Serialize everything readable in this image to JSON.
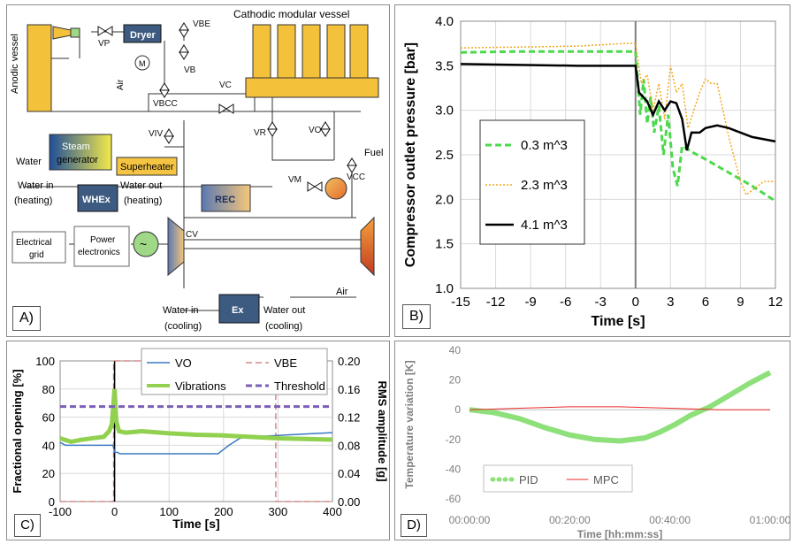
{
  "panels": {
    "a": {
      "tag": "A)"
    },
    "b": {
      "tag": "B)"
    },
    "c": {
      "tag": "C)"
    },
    "d": {
      "tag": "D)"
    }
  },
  "diagram": {
    "labels": {
      "anodic": "Anodic vessel",
      "cathodic": "Cathodic modular vessel",
      "dryer": "Dryer",
      "air_side": "Air",
      "steam1": "Steam",
      "steam2": "generator",
      "superheater": "Superheater",
      "water": "Water",
      "water_in_heating": "Water in",
      "heating_left": "(heating)",
      "whex": "WHEx",
      "water_out_heating": "Water out",
      "heating_right": "(heating)",
      "rec": "REC",
      "fuel": "Fuel",
      "grid1": "Electrical",
      "grid2": "grid",
      "pe1": "Power",
      "pe2": "electronics",
      "air_right": "Air",
      "ex": "Ex",
      "water_in_cooling": "Water in",
      "cooling_left": "(cooling)",
      "water_out_cooling": "Water out",
      "cooling_right": "(cooling)",
      "motor": "M"
    },
    "valves": [
      "VP",
      "VBE",
      "VB",
      "VBCC",
      "VC",
      "VIV",
      "VR",
      "VO",
      "VCC",
      "VM",
      "CV"
    ],
    "colors": {
      "vessel": "#f3c13a",
      "dryer": "#3d5a80",
      "steam_start": "#1f4e9a",
      "steam_end": "#f4ea4a",
      "superheater": "#f6c443",
      "rec_start": "#5b78b3",
      "rec_end": "#f5c77a",
      "turbine_start": "#5b78b3",
      "turbine_end": "#f5c77a",
      "compressor_start": "#f4a23c",
      "compressor_end": "#c23b22",
      "generator": "#9fd987",
      "burner": "#f08a3c"
    }
  },
  "chart_data": [
    {
      "type": "line",
      "panel": "B",
      "xlabel": "Time [s]",
      "ylabel": "Compressor outlet pressure [bar]",
      "xlim": [
        -15,
        12
      ],
      "ylim": [
        1.0,
        4.0
      ],
      "xticks": [
        "-15",
        "-12",
        "-9",
        "-6",
        "-3",
        "0",
        "3",
        "6",
        "9",
        "12"
      ],
      "yticks": [
        "1.0",
        "1.5",
        "2.0",
        "2.5",
        "3.0",
        "3.5",
        "4.0"
      ],
      "grid": true,
      "legend_position": "center-left",
      "vline_x": 0,
      "series": [
        {
          "name": "0.3 m^3",
          "color": "#4cd94c",
          "style": "dashed",
          "width": 3,
          "x": [
            -15,
            -10,
            -5,
            -1,
            0,
            0.4,
            0.7,
            1.0,
            1.3,
            1.6,
            2.0,
            2.4,
            2.8,
            3.2,
            3.6,
            4.0,
            5,
            6,
            8,
            10,
            12
          ],
          "y": [
            3.65,
            3.66,
            3.66,
            3.66,
            3.66,
            2.95,
            3.35,
            2.85,
            3.15,
            2.75,
            3.05,
            2.5,
            2.95,
            2.35,
            2.15,
            2.6,
            2.52,
            2.45,
            2.3,
            2.15,
            1.98
          ]
        },
        {
          "name": "2.3 m^3",
          "color": "#f2a81d",
          "style": "dotted",
          "width": 1.5,
          "x": [
            -15,
            -10,
            -5,
            -1,
            0,
            0.5,
            1.0,
            1.5,
            2.0,
            2.5,
            3.0,
            3.5,
            4.0,
            4.5,
            5.0,
            5.5,
            6.0,
            6.5,
            7.0,
            8.0,
            9.0,
            9.5,
            10,
            11,
            12
          ],
          "y": [
            3.7,
            3.71,
            3.72,
            3.75,
            3.75,
            3.3,
            3.4,
            3.0,
            3.3,
            2.9,
            3.5,
            3.2,
            3.3,
            2.8,
            3.0,
            3.2,
            3.35,
            3.3,
            3.3,
            2.7,
            2.2,
            2.05,
            2.1,
            2.2,
            2.2
          ]
        },
        {
          "name": "4.1 m^3",
          "color": "#000000",
          "style": "solid",
          "width": 2.5,
          "x": [
            -15,
            -10,
            -5,
            -1,
            0,
            0.3,
            1.0,
            1.5,
            2.0,
            2.5,
            3.0,
            3.5,
            4.0,
            4.4,
            4.8,
            5.5,
            6.0,
            7.0,
            8.0,
            10,
            12
          ],
          "y": [
            3.52,
            3.51,
            3.5,
            3.5,
            3.5,
            3.2,
            3.1,
            2.95,
            3.1,
            3.0,
            3.1,
            3.08,
            2.9,
            2.55,
            2.75,
            2.75,
            2.8,
            2.83,
            2.8,
            2.7,
            2.65
          ]
        }
      ]
    },
    {
      "type": "line",
      "panel": "C",
      "xlabel": "Time [s]",
      "ylabel": "Fractional opening [%]",
      "y2label": "RMS amplitude [g]",
      "xlim": [
        -100,
        400
      ],
      "ylim": [
        0,
        100
      ],
      "y2lim": [
        0,
        0.2
      ],
      "xticks": [
        "-100",
        "0",
        "100",
        "200",
        "300",
        "400"
      ],
      "yticks": [
        "0",
        "20",
        "40",
        "60",
        "80",
        "100"
      ],
      "y2ticks": [
        "0.00",
        "0.04",
        "0.08",
        "0.12",
        "0.16",
        "0.20"
      ],
      "grid": true,
      "legend_position": "top",
      "vline_x": 0,
      "series": [
        {
          "name": "VO",
          "color": "#3c7ac2",
          "style": "solid",
          "width": 1.5,
          "axis": "left",
          "x": [
            -100,
            -90,
            -80,
            -60,
            -20,
            -3,
            0,
            5,
            10,
            50,
            100,
            150,
            190,
            200,
            210,
            230,
            250,
            300,
            350,
            400
          ],
          "y": [
            42,
            40,
            40,
            40,
            40,
            40,
            35,
            35,
            34,
            34,
            34,
            34,
            34,
            37,
            40,
            45,
            46,
            47,
            48,
            49
          ]
        },
        {
          "name": "VBE",
          "color": "#c0504d",
          "style": "dashed",
          "width": 1,
          "axis": "left",
          "x": [
            -100,
            -2,
            -2,
            296,
            296,
            400
          ],
          "y": [
            0,
            0,
            100,
            100,
            0,
            0
          ]
        },
        {
          "name": "Vibrations",
          "color": "#92d050",
          "style": "solid",
          "width": 5,
          "axis": "right",
          "x": [
            -100,
            -80,
            -60,
            -40,
            -20,
            -10,
            -5,
            0,
            3,
            8,
            20,
            50,
            100,
            150,
            200,
            250,
            300,
            350,
            400
          ],
          "y": [
            0.09,
            0.085,
            0.088,
            0.09,
            0.092,
            0.1,
            0.11,
            0.16,
            0.115,
            0.1,
            0.098,
            0.1,
            0.097,
            0.095,
            0.094,
            0.092,
            0.09,
            0.089,
            0.088
          ]
        },
        {
          "name": "Threshold",
          "color": "#7b5fb7",
          "style": "dashed",
          "width": 3,
          "axis": "right",
          "x": [
            -100,
            400
          ],
          "y": [
            0.135,
            0.135
          ]
        }
      ]
    },
    {
      "type": "line",
      "panel": "D",
      "xlabel": "Time [hh:mm:ss]",
      "ylabel": "Temperature variation [K]",
      "xlim": [
        "00:00:00",
        "01:00:00"
      ],
      "ylim": [
        -60,
        40
      ],
      "xticks": [
        "00:00:00",
        "00:20:00",
        "00:40:00",
        "01:00:00"
      ],
      "yticks": [
        "-60",
        "-40",
        "-20",
        "0",
        "20",
        "40"
      ],
      "grid": false,
      "legend_position": "bottom-left",
      "series": [
        {
          "name": "PID",
          "color": "#8de07a",
          "style": "solid",
          "width": 6,
          "x": [
            "00:00:00",
            "00:05:00",
            "00:10:00",
            "00:15:00",
            "00:20:00",
            "00:25:00",
            "00:30:00",
            "00:35:00",
            "00:38:00",
            "00:41:00",
            "00:44:00",
            "00:48:00",
            "00:52:00",
            "00:56:00",
            "01:00:00"
          ],
          "y": [
            0,
            -2,
            -6,
            -12,
            -17,
            -20,
            -21,
            -19,
            -15,
            -10,
            -4,
            2,
            10,
            18,
            25
          ]
        },
        {
          "name": "MPC",
          "color": "#ee2a2a",
          "style": "solid",
          "width": 1,
          "x": [
            "00:00:00",
            "00:10:00",
            "00:20:00",
            "00:30:00",
            "00:40:00",
            "00:50:00",
            "01:00:00"
          ],
          "y": [
            0,
            1,
            2,
            2,
            1,
            0,
            0
          ]
        }
      ]
    }
  ]
}
